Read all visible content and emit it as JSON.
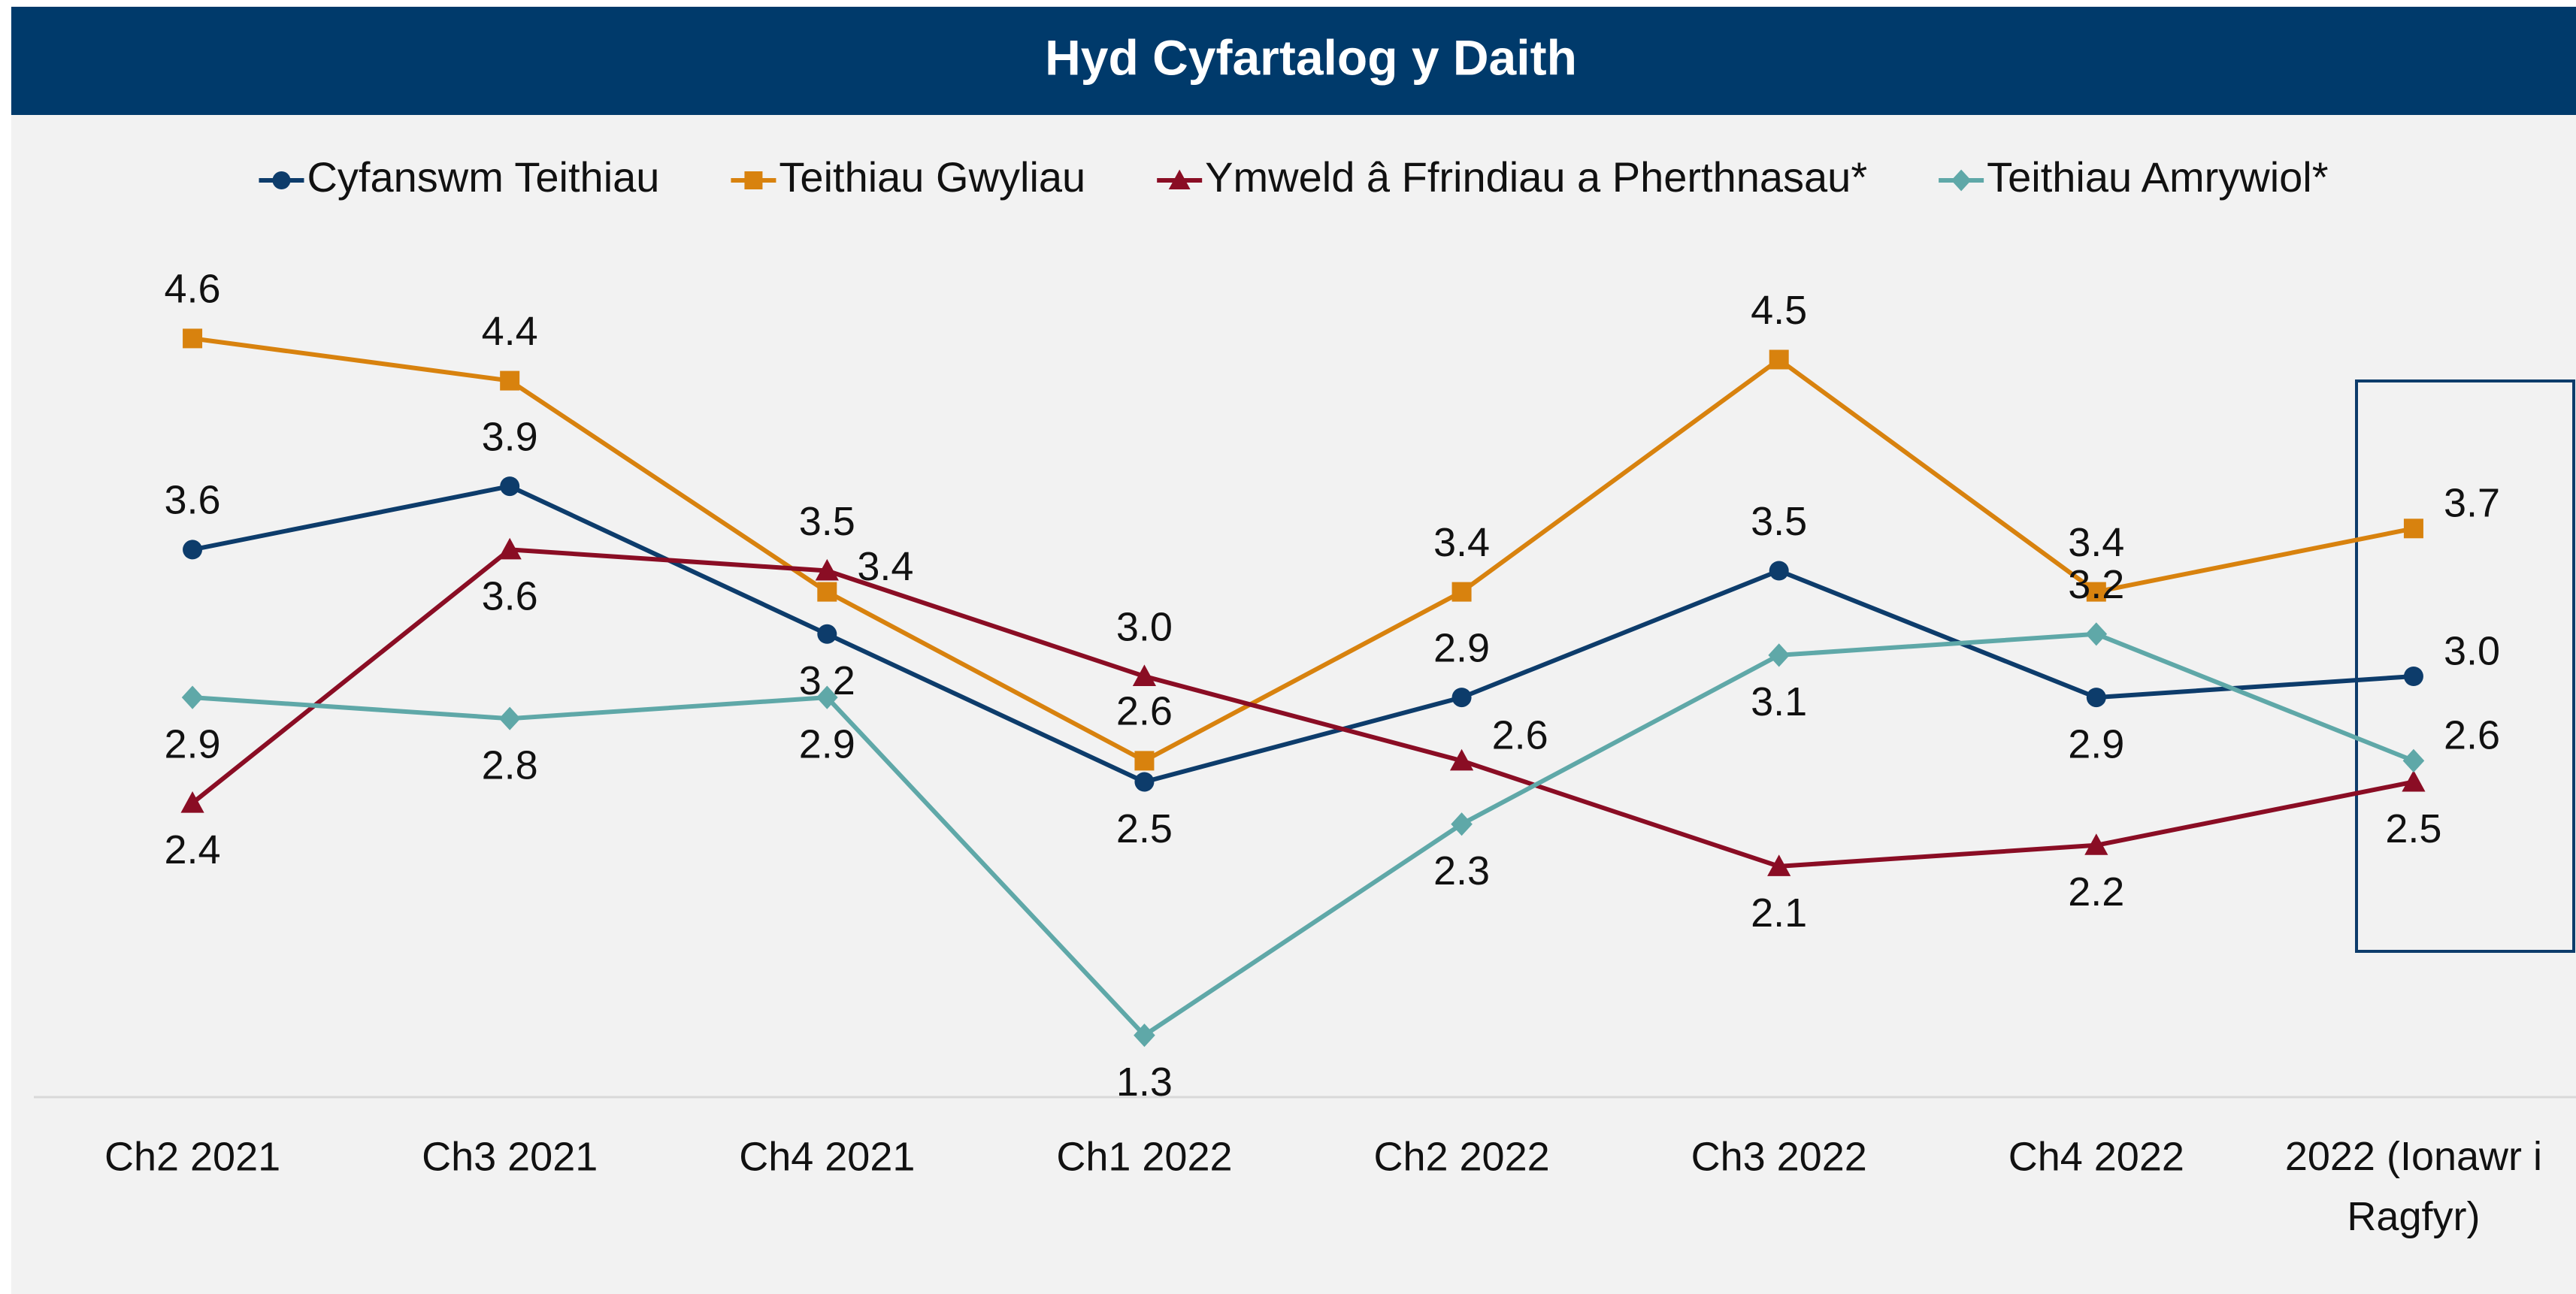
{
  "chart_data": {
    "type": "line",
    "title": "Hyd Cyfartalog  y Daith",
    "categories": [
      "Ch2 2021",
      "Ch3 2021",
      "Ch4 2021",
      "Ch1 2022",
      "Ch2 2022",
      "Ch3 2022",
      "Ch4 2022",
      "2022 (Ionawr i Ragfyr)"
    ],
    "ylim": [
      1,
      5
    ],
    "legend": "top",
    "series": [
      {
        "name": "Cyfanswm Teithiau",
        "color": "#0d3c6b",
        "marker": "circle",
        "values": [
          3.6,
          3.9,
          3.2,
          2.5,
          2.9,
          3.5,
          2.9,
          3.0
        ],
        "value_labels": [
          "3.6",
          "3.9",
          "3.2",
          "2.5",
          "2.9",
          "3.5",
          "2.9",
          "3.0"
        ]
      },
      {
        "name": "Teithiau Gwyliau",
        "color": "#d8820e",
        "marker": "square",
        "values": [
          4.6,
          4.4,
          3.4,
          2.6,
          3.4,
          4.5,
          3.4,
          3.7
        ],
        "value_labels": [
          "4.6",
          "4.4",
          "3.4",
          "2.6",
          "3.4",
          "4.5",
          "3.4",
          "3.7"
        ]
      },
      {
        "name": "Ymweld â Ffrindiau a Pherthnasau*",
        "color": "#8a0d24",
        "marker": "triangle",
        "values": [
          2.4,
          3.6,
          3.5,
          3.0,
          2.6,
          2.1,
          2.2,
          2.5
        ],
        "value_labels": [
          "2.4",
          "3.6",
          "3.5",
          "3.0",
          "2.6",
          "2.1",
          "2.2",
          "2.5"
        ]
      },
      {
        "name": "Teithiau Amrywiol*",
        "color": "#5fa8a8",
        "marker": "diamond",
        "values": [
          2.9,
          2.8,
          2.9,
          1.3,
          2.3,
          3.1,
          3.2,
          2.6
        ],
        "value_labels": [
          "2.9",
          "2.8",
          "2.9",
          "1.3",
          "2.3",
          "3.1",
          "3.2",
          "2.6"
        ]
      }
    ]
  }
}
